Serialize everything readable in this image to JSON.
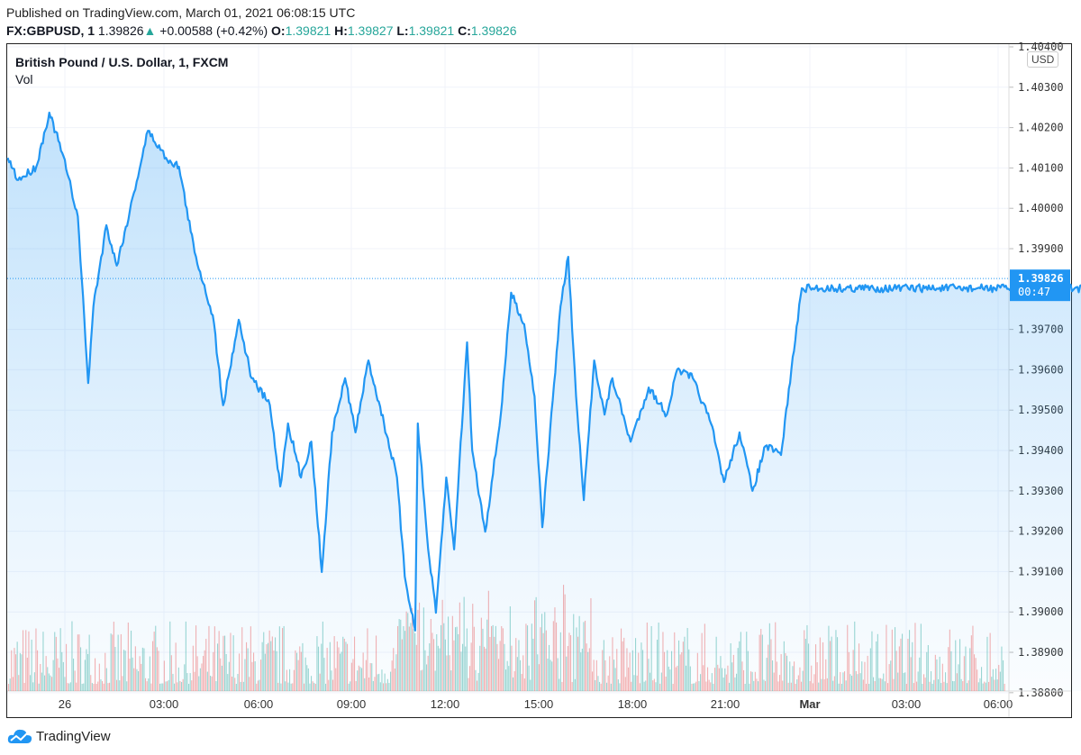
{
  "header": {
    "published": "Published on TradingView.com, March 01, 2021 06:08:15 UTC",
    "symbol": "FX:GBPUSD, 1",
    "last": "1.39826",
    "change": "+0.00588 (+0.42%)",
    "o_label": "O:",
    "o": "1.39821",
    "h_label": "H:",
    "h": "1.39827",
    "l_label": "L:",
    "l": "1.39821",
    "c_label": "C:",
    "c": "1.39826"
  },
  "chart_title": "British Pound / U.S. Dollar, 1, FXCM",
  "volume_label": "Vol",
  "currency": "USD",
  "price_tag": {
    "price": "1.39826",
    "countdown": "00:47"
  },
  "footer": {
    "brand": "TradingView"
  },
  "colors": {
    "line": "#2196f3",
    "up": "#26a69a",
    "down": "#ef5350",
    "tag": "#2196f3"
  },
  "chart_data": {
    "type": "area",
    "series": [
      {
        "values": [
          [
            "2021-02-25T22:10",
            1.40125
          ],
          [
            "2021-02-25T22:30",
            1.4007
          ],
          [
            "2021-02-25T23:05",
            1.40103
          ],
          [
            "2021-02-25T23:30",
            1.40237
          ],
          [
            "2021-02-25T23:55",
            1.40137
          ],
          [
            "2021-02-26T00:25",
            1.3998
          ],
          [
            "2021-02-26T00:45",
            1.39567
          ],
          [
            "2021-02-26T00:55",
            1.39757
          ],
          [
            "2021-02-26T01:20",
            1.39958
          ],
          [
            "2021-02-26T01:40",
            1.39858
          ],
          [
            "2021-02-26T02:05",
            1.39992
          ],
          [
            "2021-02-26T02:40",
            1.40192
          ],
          [
            "2021-02-26T03:15",
            1.40125
          ],
          [
            "2021-02-26T03:40",
            1.40103
          ],
          [
            "2021-02-26T04:10",
            1.39891
          ],
          [
            "2021-02-26T04:45",
            1.39735
          ],
          [
            "2021-02-26T05:05",
            1.39512
          ],
          [
            "2021-02-26T05:35",
            1.39724
          ],
          [
            "2021-02-26T06:00",
            1.39579
          ],
          [
            "2021-02-26T06:35",
            1.39512
          ],
          [
            "2021-02-26T06:55",
            1.39311
          ],
          [
            "2021-02-26T07:10",
            1.39467
          ],
          [
            "2021-02-26T07:35",
            1.39333
          ],
          [
            "2021-02-26T07:55",
            1.39422
          ],
          [
            "2021-02-26T08:15",
            1.39099
          ],
          [
            "2021-02-26T08:35",
            1.39445
          ],
          [
            "2021-02-26T09:00",
            1.39579
          ],
          [
            "2021-02-26T09:20",
            1.39445
          ],
          [
            "2021-02-26T09:45",
            1.39623
          ],
          [
            "2021-02-26T10:15",
            1.39467
          ],
          [
            "2021-02-26T10:40",
            1.39333
          ],
          [
            "2021-02-26T10:55",
            1.39088
          ],
          [
            "2021-02-26T11:15",
            1.38954
          ],
          [
            "2021-02-26T11:20",
            1.39467
          ],
          [
            "2021-02-26T11:40",
            1.39155
          ],
          [
            "2021-02-26T11:55",
            1.38998
          ],
          [
            "2021-02-26T12:15",
            1.39333
          ],
          [
            "2021-02-26T12:30",
            1.39155
          ],
          [
            "2021-02-26T12:55",
            1.39668
          ],
          [
            "2021-02-26T13:05",
            1.394
          ],
          [
            "2021-02-26T13:30",
            1.39199
          ],
          [
            "2021-02-26T14:00",
            1.39489
          ],
          [
            "2021-02-26T14:20",
            1.39791
          ],
          [
            "2021-02-26T14:45",
            1.39713
          ],
          [
            "2021-02-26T15:05",
            1.39534
          ],
          [
            "2021-02-26T15:20",
            1.3921
          ],
          [
            "2021-02-26T15:40",
            1.39523
          ],
          [
            "2021-02-26T15:55",
            1.39757
          ],
          [
            "2021-02-26T16:10",
            1.3988
          ],
          [
            "2021-02-26T16:25",
            1.39534
          ],
          [
            "2021-02-26T16:40",
            1.39277
          ],
          [
            "2021-02-26T17:00",
            1.39623
          ],
          [
            "2021-02-26T17:20",
            1.39489
          ],
          [
            "2021-02-26T17:35",
            1.39579
          ],
          [
            "2021-02-26T18:10",
            1.39422
          ],
          [
            "2021-02-26T18:45",
            1.39556
          ],
          [
            "2021-02-26T19:20",
            1.39489
          ],
          [
            "2021-02-26T19:40",
            1.39601
          ],
          [
            "2021-02-26T20:10",
            1.39579
          ],
          [
            "2021-02-26T20:45",
            1.39467
          ],
          [
            "2021-02-26T21:10",
            1.39322
          ],
          [
            "2021-02-26T21:40",
            1.39445
          ],
          [
            "2021-02-26T22:05",
            1.393
          ],
          [
            "2021-02-26T22:30",
            1.39411
          ],
          [
            "2021-02-26T23:00",
            1.39389
          ],
          [
            "2021-02-26T23:20",
            1.39601
          ],
          [
            "2021-02-26T23:40",
            1.39802
          ],
          [
            "2021-03-01T00:05",
            1.39802
          ],
          [
            "2021-03-01T00:30",
            1.3988
          ],
          [
            "2021-03-01T01:00",
            1.39913
          ],
          [
            "2021-03-01T01:15",
            1.39802
          ],
          [
            "2021-03-01T01:30",
            1.39969
          ],
          [
            "2021-03-01T02:05",
            1.39846
          ],
          [
            "2021-03-01T02:40",
            1.39958
          ],
          [
            "2021-03-01T03:10",
            1.39869
          ],
          [
            "2021-03-01T04:00",
            1.39869
          ],
          [
            "2021-03-01T04:30",
            1.39724
          ],
          [
            "2021-03-01T04:50",
            1.3969
          ],
          [
            "2021-03-01T05:20",
            1.3978
          ],
          [
            "2021-03-01T05:45",
            1.39846
          ],
          [
            "2021-03-01T06:05",
            1.39826
          ]
        ]
      }
    ],
    "y_ticks": [
      "1.40400",
      "1.40300",
      "1.40200",
      "1.40100",
      "1.40000",
      "1.39900",
      "1.39700",
      "1.39600",
      "1.39500",
      "1.39400",
      "1.39300",
      "1.39200",
      "1.39100",
      "1.39000",
      "1.38900",
      "1.38800"
    ],
    "x_ticks": [
      "26",
      "03:00",
      "06:00",
      "09:00",
      "12:00",
      "15:00",
      "18:00",
      "21:00",
      "Mar",
      "03:00",
      "06:00"
    ],
    "ylim": [
      1.3875,
      1.4041
    ],
    "grid": true
  }
}
